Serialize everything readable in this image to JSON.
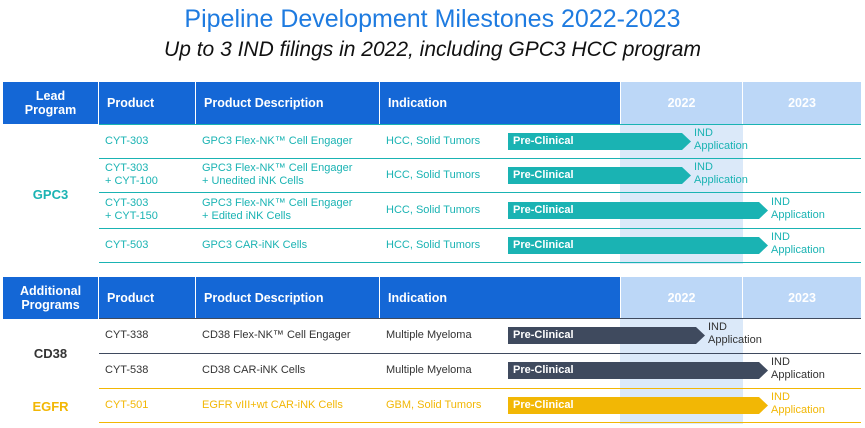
{
  "title": "Pipeline Development Milestones 2022-2023",
  "subtitle": "Up to 3 IND filings in 2022, including GPC3 HCC program",
  "colors": {
    "header_blue": "#1467d6",
    "year_header": "#bcd7f7",
    "teal": "#1ab3b3",
    "navy": "#3f4a5e",
    "gold": "#f2b705",
    "shade": "#dbe9f9"
  },
  "section1": {
    "header": {
      "group": "Lead Program",
      "product": "Product",
      "description": "Product Description",
      "indication": "Indication",
      "year1": "2022",
      "year2": "2023"
    },
    "group_label": "GPC3",
    "rows": [
      {
        "product": "CYT-303",
        "description": "GPC3 Flex-NK™ Cell Engager",
        "indication": "HCC, Solid Tumors",
        "stage": "Pre-Clinical",
        "milestone": "IND\nApplication",
        "progress": 0.52
      },
      {
        "product": "CYT-303\n+ CYT-100",
        "description": "GPC3 Flex-NK™ Cell Engager\n+ Unedited iNK Cells",
        "indication": "HCC, Solid Tumors",
        "stage": "Pre-Clinical",
        "milestone": "IND\nApplication",
        "progress": 0.52
      },
      {
        "product": "CYT-303\n+ CYT-150",
        "description": "GPC3 Flex-NK™ Cell Engager\n+ Edited iNK Cells",
        "indication": "HCC, Solid Tumors",
        "stage": "Pre-Clinical",
        "milestone": "IND\nApplication",
        "progress": 0.74
      },
      {
        "product": "CYT-503",
        "description": "GPC3 CAR-iNK Cells",
        "indication": "HCC, Solid Tumors",
        "stage": "Pre-Clinical",
        "milestone": "IND\nApplication",
        "progress": 0.74
      }
    ]
  },
  "section2": {
    "header": {
      "group": "Additional Programs",
      "product": "Product",
      "description": "Product Description",
      "indication": "Indication",
      "year1": "2022",
      "year2": "2023"
    },
    "groups": [
      {
        "label": "CD38",
        "rows": [
          {
            "product": "CYT-338",
            "description": "CD38 Flex-NK™ Cell Engager",
            "indication": "Multiple Myeloma",
            "stage": "Pre-Clinical",
            "milestone": "IND\nApplication",
            "progress": 0.56
          },
          {
            "product": "CYT-538",
            "description": "CD38 CAR-iNK Cells",
            "indication": "Multiple Myeloma",
            "stage": "Pre-Clinical",
            "milestone": "IND\nApplication",
            "progress": 0.74
          }
        ]
      },
      {
        "label": "EGFR",
        "rows": [
          {
            "product": "CYT-501",
            "description": "EGFR vIII+wt CAR-iNK Cells",
            "indication": "GBM, Solid Tumors",
            "stage": "Pre-Clinical",
            "milestone": "IND\nApplication",
            "progress": 0.74
          }
        ]
      }
    ]
  }
}
